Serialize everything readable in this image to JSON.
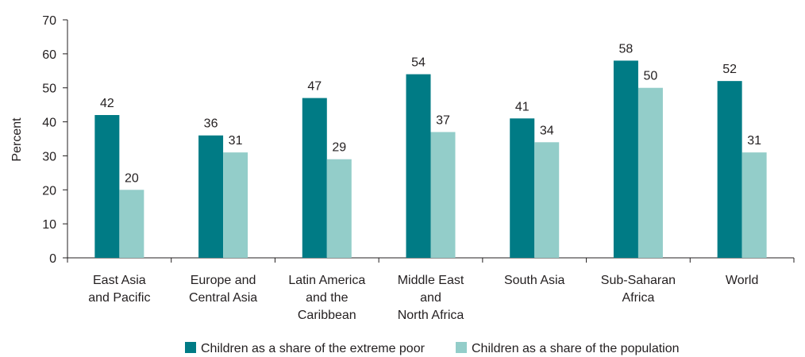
{
  "chart_data": {
    "type": "bar",
    "ylabel": "Percent",
    "xlabel": "",
    "ylim": [
      0,
      70
    ],
    "yticks": [
      0,
      10,
      20,
      30,
      40,
      50,
      60,
      70
    ],
    "grid": false,
    "legend_position": "bottom",
    "categories": [
      [
        "East Asia",
        "and Pacific"
      ],
      [
        "Europe and",
        "Central Asia"
      ],
      [
        "Latin America",
        "and the",
        "Caribbean"
      ],
      [
        "Middle East",
        "and",
        "North Africa"
      ],
      [
        "South Asia"
      ],
      [
        "Sub-Saharan",
        "Africa"
      ],
      [
        "World"
      ]
    ],
    "series": [
      {
        "name": "Children as a share of the extreme poor",
        "color": "#007b85",
        "values": [
          42,
          36,
          47,
          54,
          41,
          58,
          52
        ],
        "labels": [
          "42",
          "36",
          "47",
          "54",
          "41",
          "58",
          "52"
        ]
      },
      {
        "name": "Children as a share of the population",
        "color": "#93cdc9",
        "values": [
          20,
          31,
          29,
          37,
          34,
          50,
          31
        ],
        "labels": [
          "20",
          "31",
          "29",
          "37",
          "34",
          "50",
          "31"
        ]
      }
    ]
  }
}
